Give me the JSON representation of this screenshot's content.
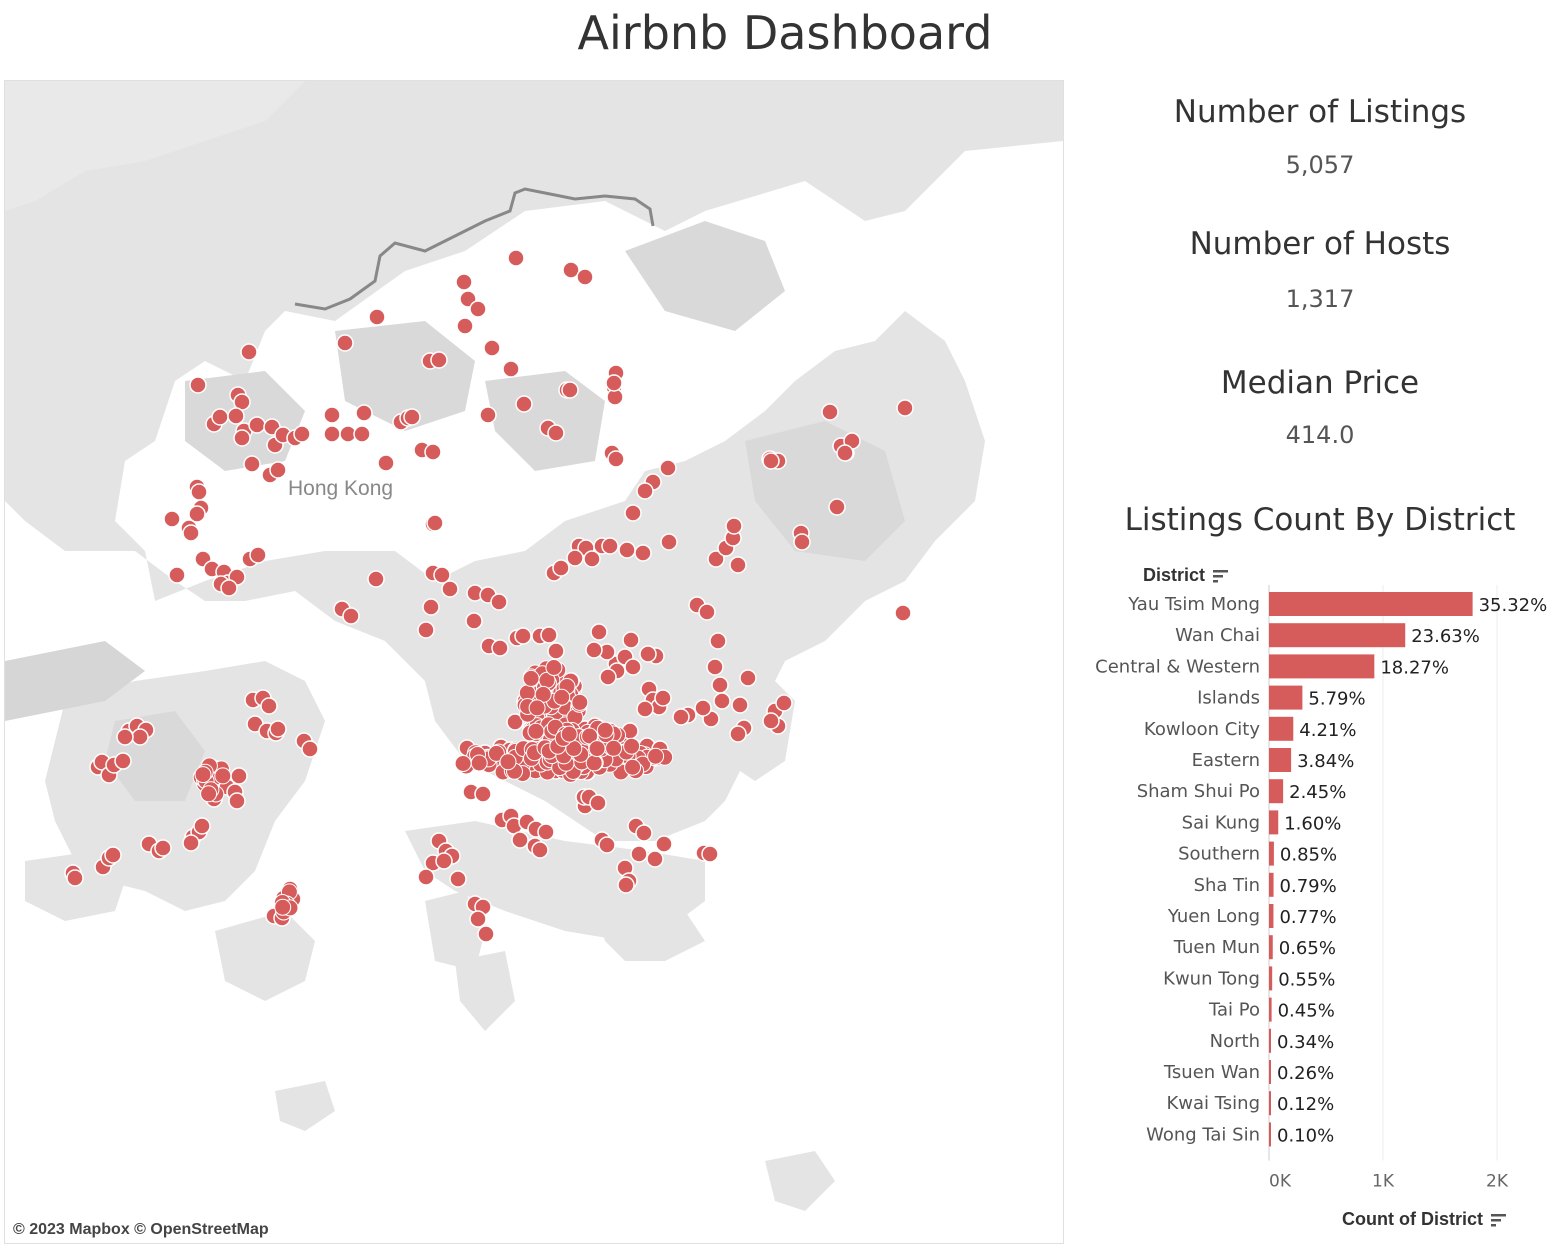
{
  "dashboard": {
    "title": "Airbnb Dashboard"
  },
  "map": {
    "place_label": "Hong Kong",
    "attribution": "© 2023 Mapbox  © OpenStreetMap",
    "marker_color": "#d65c5c"
  },
  "kpis": [
    {
      "title": "Number of Listings",
      "value": "5,057"
    },
    {
      "title": "Number of Hosts",
      "value": "1,317"
    },
    {
      "title": "Median Price",
      "value": "414.0"
    }
  ],
  "chart_data": {
    "type": "bar",
    "orientation": "horizontal",
    "title": "Listings Count By District",
    "ylabel": "District",
    "xlabel": "Count of District",
    "categories": [
      "Yau Tsim Mong",
      "Wan Chai",
      "Central & Western",
      "Islands",
      "Kowloon City",
      "Eastern",
      "Sham Shui Po",
      "Sai Kung",
      "Southern",
      "Sha Tin",
      "Yuen Long",
      "Tuen Mun",
      "Kwun Tong",
      "Tai Po",
      "North",
      "Tsuen Wan",
      "Kwai Tsing",
      "Wong Tai Sin"
    ],
    "values": [
      1786,
      1195,
      924,
      293,
      213,
      194,
      124,
      81,
      43,
      40,
      39,
      33,
      28,
      23,
      17,
      13,
      6,
      5
    ],
    "labels": [
      "35.32%",
      "23.63%",
      "18.27%",
      "5.79%",
      "4.21%",
      "3.84%",
      "2.45%",
      "1.60%",
      "0.85%",
      "0.79%",
      "0.77%",
      "0.65%",
      "0.55%",
      "0.45%",
      "0.34%",
      "0.26%",
      "0.12%",
      "0.10%"
    ],
    "xticks": [
      "0K",
      "1K",
      "2K"
    ],
    "xlim": [
      0,
      2300
    ],
    "color": "#d65c5c",
    "grid": true
  }
}
